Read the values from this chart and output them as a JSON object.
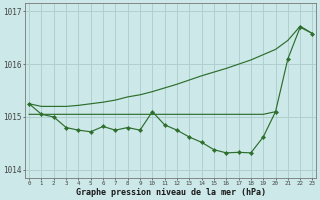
{
  "xlabel": "Graphe pression niveau de la mer (hPa)",
  "bg_color": "#cce8e8",
  "grid_color": "#b0d0d0",
  "line_color": "#2d6e2d",
  "hours": [
    0,
    1,
    2,
    3,
    4,
    5,
    6,
    7,
    8,
    9,
    10,
    11,
    12,
    13,
    14,
    15,
    16,
    17,
    18,
    19,
    20,
    21,
    22,
    23
  ],
  "pressure_detailed": [
    1015.25,
    1015.05,
    1015.0,
    1014.8,
    1014.75,
    1014.72,
    1014.82,
    1014.75,
    1014.8,
    1014.75,
    1015.1,
    1014.85,
    1014.75,
    1014.62,
    1014.52,
    1014.38,
    1014.32,
    1014.33,
    1014.32,
    1014.62,
    1015.1,
    1016.1,
    1016.7,
    1016.58
  ],
  "pressure_flat": [
    1015.05,
    1015.05,
    1015.05,
    1015.05,
    1015.05,
    1015.05,
    1015.05,
    1015.05,
    1015.05,
    1015.05,
    1015.05,
    1015.05,
    1015.05,
    1015.05,
    1015.05,
    1015.05,
    1015.05,
    1015.05,
    1015.05,
    1015.05,
    1015.1
  ],
  "pressure_rising": [
    1015.25,
    1015.2,
    1015.2,
    1015.2,
    1015.22,
    1015.25,
    1015.28,
    1015.32,
    1015.38,
    1015.42,
    1015.48,
    1015.55,
    1015.62,
    1015.7,
    1015.78,
    1015.85,
    1015.92,
    1016.0,
    1016.08,
    1016.18,
    1016.28,
    1016.45,
    1016.72,
    1016.58
  ],
  "hours_flat": [
    0,
    1,
    2,
    3,
    4,
    5,
    6,
    7,
    8,
    9,
    10,
    11,
    12,
    13,
    14,
    15,
    16,
    17,
    18,
    19,
    20
  ],
  "ylim": [
    1013.85,
    1017.15
  ],
  "xlim": [
    -0.3,
    23.3
  ],
  "yticks": [
    1014,
    1015,
    1016,
    1017
  ],
  "xtick_labels": [
    "0",
    "1",
    "2",
    "3",
    "4",
    "5",
    "6",
    "7",
    "8",
    "9",
    "10",
    "11",
    "12",
    "13",
    "14",
    "15",
    "16",
    "17",
    "18",
    "19",
    "20",
    "21",
    "22",
    "23"
  ]
}
